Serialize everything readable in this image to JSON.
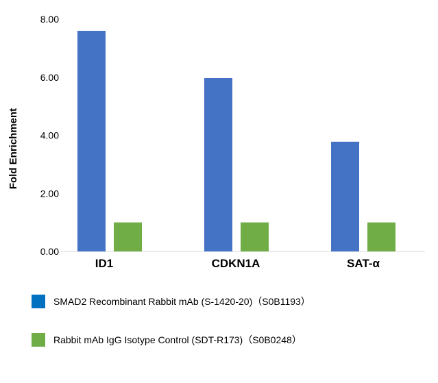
{
  "chart_data": {
    "type": "bar",
    "ylabel": "Fold Enrichment",
    "categories": [
      "ID1",
      "CDKN1A",
      "SAT-α"
    ],
    "ylim": [
      0,
      8
    ],
    "yticks": [
      "0.00",
      "2.00",
      "4.00",
      "6.00",
      "8.00"
    ],
    "grid": false,
    "legend_position": "bottom",
    "series": [
      {
        "name": "SMAD2 Recombinant Rabbit mAb (S-1420-20)（S0B1193）",
        "color": "#4472C4",
        "swatch_color": "#0070C0",
        "values": [
          7.6,
          5.97,
          3.78
        ]
      },
      {
        "name": "Rabbit mAb IgG Isotype Control (SDT-R173)（S0B0248）",
        "color": "#70AD47",
        "swatch_color": "#70AD47",
        "values": [
          1.0,
          1.0,
          1.0
        ]
      }
    ]
  }
}
